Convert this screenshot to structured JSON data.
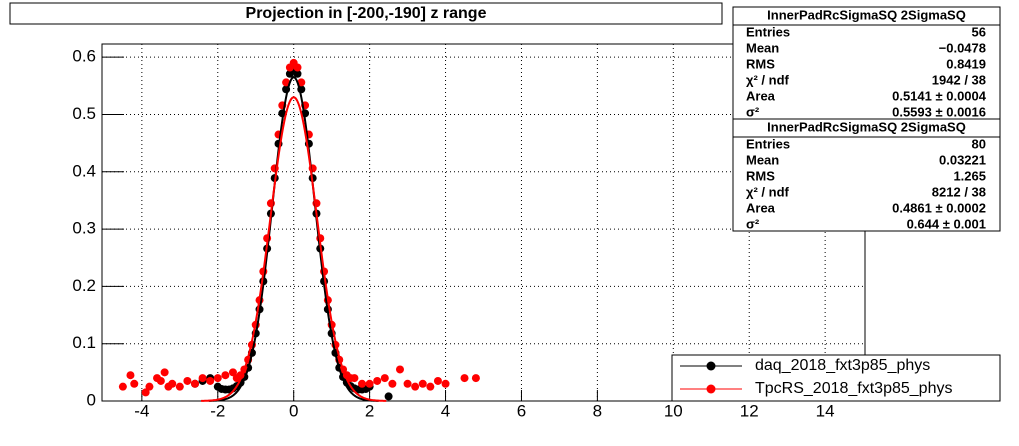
{
  "chart_data": {
    "type": "scatter",
    "title": "Projection in [-200,-190] z range",
    "xlim": [
      -5.05,
      15.05
    ],
    "ylim": [
      0,
      0.623
    ],
    "xticks": [
      -4,
      -2,
      0,
      2,
      4,
      6,
      8,
      10,
      12,
      14
    ],
    "yticks": [
      0,
      0.1,
      0.2,
      0.3,
      0.4,
      0.5,
      0.6
    ],
    "grid": true,
    "legend": "bottom-right",
    "series": [
      {
        "name": "daq_2018_fxt3p85_phys",
        "color": "#000000",
        "x": [
          -2.6,
          -2.4,
          -2.2,
          -2.0,
          -1.9,
          -1.8,
          -1.7,
          -1.6,
          -1.5,
          -1.4,
          -1.3,
          -1.2,
          -1.1,
          -1.0,
          -0.9,
          -0.8,
          -0.7,
          -0.6,
          -0.5,
          -0.4,
          -0.3,
          -0.2,
          -0.1,
          0,
          0.1,
          0.2,
          0.3,
          0.4,
          0.5,
          0.6,
          0.7,
          0.8,
          0.9,
          1.0,
          1.1,
          1.2,
          1.3,
          1.4,
          1.5,
          1.6,
          1.7,
          1.8,
          1.9,
          2.0,
          2.5
        ],
        "values": [
          0.03,
          0.035,
          0.04,
          0.025,
          0.021,
          0.02,
          0.02,
          0.022,
          0.026,
          0.032,
          0.042,
          0.058,
          0.084,
          0.118,
          0.16,
          0.209,
          0.266,
          0.327,
          0.389,
          0.449,
          0.502,
          0.544,
          0.571,
          0.58,
          0.571,
          0.544,
          0.502,
          0.449,
          0.389,
          0.327,
          0.266,
          0.209,
          0.16,
          0.118,
          0.084,
          0.058,
          0.042,
          0.032,
          0.026,
          0.022,
          0.02,
          0.02,
          0.021,
          0.025,
          0.008
        ],
        "fit": {
          "amplitude": 0.565,
          "mean": 0,
          "sigma": 0.56
        }
      },
      {
        "name": "TpcRS_2018_fxt3p85_phys",
        "color": "#ff0000",
        "x": [
          -4.5,
          -4.3,
          -4.2,
          -3.9,
          -3.8,
          -3.6,
          -3.5,
          -3.4,
          -3.3,
          -3.2,
          -3.0,
          -2.8,
          -2.6,
          -2.4,
          -2.2,
          -2.0,
          -1.8,
          -1.6,
          -1.5,
          -1.4,
          -1.3,
          -1.2,
          -1.1,
          -1.0,
          -0.9,
          -0.8,
          -0.7,
          -0.6,
          -0.5,
          -0.4,
          -0.3,
          -0.2,
          -0.1,
          0,
          0.1,
          0.2,
          0.3,
          0.4,
          0.5,
          0.6,
          0.7,
          0.8,
          0.9,
          1.0,
          1.1,
          1.2,
          1.3,
          1.4,
          1.5,
          1.6,
          1.8,
          2.0,
          2.2,
          2.4,
          2.6,
          2.8,
          3.0,
          3.2,
          3.4,
          3.6,
          3.8,
          4.0,
          4.5,
          4.8
        ],
        "values": [
          0.025,
          0.045,
          0.03,
          0.015,
          0.025,
          0.04,
          0.035,
          0.05,
          0.025,
          0.03,
          0.025,
          0.035,
          0.03,
          0.04,
          0.035,
          0.04,
          0.045,
          0.05,
          0.04,
          0.045,
          0.055,
          0.072,
          0.098,
          0.133,
          0.176,
          0.226,
          0.284,
          0.345,
          0.406,
          0.465,
          0.516,
          0.556,
          0.582,
          0.59,
          0.582,
          0.556,
          0.516,
          0.465,
          0.406,
          0.345,
          0.284,
          0.226,
          0.176,
          0.133,
          0.098,
          0.072,
          0.055,
          0.045,
          0.04,
          0.04,
          0.03,
          0.03,
          0.035,
          0.04,
          0.03,
          0.055,
          0.03,
          0.025,
          0.03,
          0.025,
          0.035,
          0.03,
          0.04,
          0.04
        ],
        "fit": {
          "amplitude": 0.53,
          "mean": 0,
          "sigma": 0.61
        }
      }
    ],
    "stats": [
      {
        "title": "InnerPadRcSigmaSQ 2SigmaSQ",
        "rows": [
          [
            "Entries",
            "56"
          ],
          [
            "Mean",
            "−0.0478"
          ],
          [
            "RMS",
            "0.8419"
          ],
          [
            "χ² / ndf",
            "1942 / 38"
          ],
          [
            "Area",
            "0.5141 ± 0.0004"
          ],
          [
            "σ²",
            "0.5593 ± 0.0016"
          ]
        ]
      },
      {
        "title": "InnerPadRcSigmaSQ 2SigmaSQ",
        "rows": [
          [
            "Entries",
            "80"
          ],
          [
            "Mean",
            "0.03221"
          ],
          [
            "RMS",
            "1.265"
          ],
          [
            "χ² / ndf",
            "8212 / 38"
          ],
          [
            "Area",
            "0.4861 ± 0.0002"
          ],
          [
            "σ²",
            "0.644 ± 0.001"
          ]
        ]
      }
    ]
  }
}
